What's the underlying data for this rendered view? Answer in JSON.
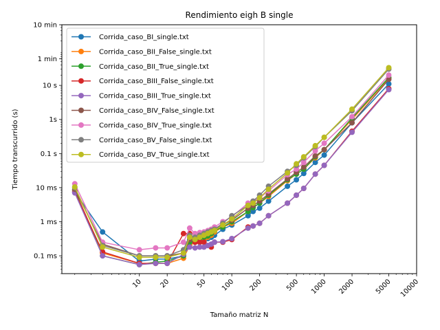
{
  "chart_data": {
    "type": "line",
    "title": "Rendimiento eigh B single",
    "xlabel": "Tamaño matriz N",
    "ylabel": "Tiempo transcurrido (s)",
    "xscale": "log",
    "yscale": "log",
    "xlim": [
      1.45,
      10000
    ],
    "ylim": [
      3e-05,
      600
    ],
    "xticks": [
      {
        "value": 10,
        "label": "10"
      },
      {
        "value": 20,
        "label": "20"
      },
      {
        "value": 50,
        "label": "50"
      },
      {
        "value": 100,
        "label": "100"
      },
      {
        "value": 200,
        "label": "200"
      },
      {
        "value": 500,
        "label": "500"
      },
      {
        "value": 1000,
        "label": "1000"
      },
      {
        "value": 2000,
        "label": "2000"
      },
      {
        "value": 5000,
        "label": "5000"
      },
      {
        "value": 10000,
        "label": "10000"
      }
    ],
    "yticks": [
      {
        "value": 0.0001,
        "label": "0.1 ms"
      },
      {
        "value": 0.001,
        "label": "1 ms"
      },
      {
        "value": 0.01,
        "label": "10 ms"
      },
      {
        "value": 0.1,
        "label": "0.1 s"
      },
      {
        "value": 1,
        "label": "1s"
      },
      {
        "value": 10,
        "label": "10 s"
      },
      {
        "value": 60,
        "label": "1 min"
      },
      {
        "value": 600,
        "label": "10 min"
      }
    ],
    "grid": false,
    "legend_position": "upper-left",
    "x": [
      2,
      4,
      10,
      15,
      20,
      30,
      35,
      40,
      45,
      50,
      55,
      60,
      65,
      80,
      100,
      150,
      170,
      200,
      250,
      400,
      500,
      600,
      800,
      1000,
      2000,
      5000
    ],
    "series": [
      {
        "name": "Corrida_caso_BI_single.txt",
        "color": "#1f77b4",
        "values": [
          0.0075,
          0.0005,
          7e-05,
          8e-05,
          8e-05,
          0.0001,
          0.00022,
          0.00025,
          0.00025,
          0.0003,
          0.00032,
          0.00035,
          0.0004,
          0.0006,
          0.0008,
          0.0015,
          0.002,
          0.0025,
          0.004,
          0.011,
          0.017,
          0.026,
          0.055,
          0.09,
          0.8,
          11
        ]
      },
      {
        "name": "Corrida_caso_BII_False_single.txt",
        "color": "#ff7f0e",
        "values": [
          0.0083,
          0.00012,
          6e-05,
          6e-05,
          6e-05,
          8.5e-05,
          0.0002,
          0.00025,
          0.00028,
          0.0003,
          0.00035,
          0.0004,
          0.0005,
          0.0007,
          0.0009,
          0.002,
          0.0026,
          0.0035,
          0.0055,
          0.016,
          0.025,
          0.035,
          0.075,
          0.13,
          1.0,
          16
        ]
      },
      {
        "name": "Corrida_caso_BII_True_single.txt",
        "color": "#2ca02c",
        "values": [
          0.0083,
          0.0001,
          5.5e-05,
          6.5e-05,
          7e-05,
          0.0001,
          0.00025,
          0.0003,
          0.00032,
          0.00035,
          0.00038,
          0.00045,
          0.00055,
          0.0007,
          0.001,
          0.002,
          0.0026,
          0.0035,
          0.006,
          0.017,
          0.025,
          0.035,
          0.08,
          0.13,
          1.1,
          17
        ]
      },
      {
        "name": "Corrida_caso_BIII_False_single.txt",
        "color": "#d62728",
        "values": [
          0.0075,
          0.00013,
          6e-05,
          6e-05,
          6e-05,
          0.00045,
          0.00045,
          0.00025,
          0.00025,
          0.00025,
          0.0002,
          0.00018,
          0.00025,
          0.00025,
          0.0003,
          0.0007,
          0.00075,
          0.0009,
          0.0015,
          0.0035,
          0.006,
          0.0095,
          0.025,
          0.045,
          0.45,
          8
        ]
      },
      {
        "name": "Corrida_caso_BIII_True_single.txt",
        "color": "#9467bd",
        "values": [
          0.007,
          0.0001,
          5.5e-05,
          6e-05,
          6e-05,
          0.00011,
          0.00018,
          0.00017,
          0.00018,
          0.00018,
          0.0002,
          0.00022,
          0.00025,
          0.00026,
          0.00032,
          0.00065,
          0.00075,
          0.0009,
          0.0015,
          0.0035,
          0.006,
          0.0095,
          0.025,
          0.045,
          0.42,
          7.5
        ]
      },
      {
        "name": "Corrida_caso_BIV_False_single.txt",
        "color": "#8c564b",
        "values": [
          0.009,
          0.00022,
          0.0001,
          0.0001,
          0.0001,
          0.00012,
          0.0003,
          0.00035,
          0.00038,
          0.0004,
          0.00045,
          0.0005,
          0.0006,
          0.0008,
          0.0011,
          0.0025,
          0.003,
          0.004,
          0.0065,
          0.018,
          0.028,
          0.04,
          0.085,
          0.13,
          0.8,
          15
        ]
      },
      {
        "name": "Corrida_caso_BIV_True_single.txt",
        "color": "#e377c2",
        "values": [
          0.013,
          0.00025,
          0.00015,
          0.00017,
          0.00017,
          0.00025,
          0.00065,
          0.00045,
          0.00048,
          0.0005,
          0.00055,
          0.0006,
          0.0007,
          0.001,
          0.0014,
          0.0035,
          0.004,
          0.005,
          0.008,
          0.024,
          0.035,
          0.055,
          0.12,
          0.2,
          1.2,
          20
        ]
      },
      {
        "name": "Corrida_caso_BV_False_single.txt",
        "color": "#7f7f7f",
        "values": [
          0.01,
          0.0002,
          0.0001,
          0.0001,
          0.0001,
          0.00015,
          0.0004,
          0.00035,
          0.0004,
          0.00045,
          0.0005,
          0.00055,
          0.0006,
          0.0009,
          0.0015,
          0.003,
          0.004,
          0.006,
          0.011,
          0.03,
          0.045,
          0.075,
          0.16,
          0.3,
          1.8,
          30
        ]
      },
      {
        "name": "Corrida_caso_BV_True_single.txt",
        "color": "#bcbd22",
        "values": [
          0.0105,
          0.00018,
          9e-05,
          9e-05,
          9e-05,
          0.00012,
          0.00035,
          0.0003,
          0.00035,
          0.0004,
          0.00045,
          0.0005,
          0.00055,
          0.0008,
          0.0012,
          0.003,
          0.0035,
          0.005,
          0.009,
          0.027,
          0.05,
          0.08,
          0.17,
          0.3,
          2.0,
          33
        ]
      }
    ]
  }
}
